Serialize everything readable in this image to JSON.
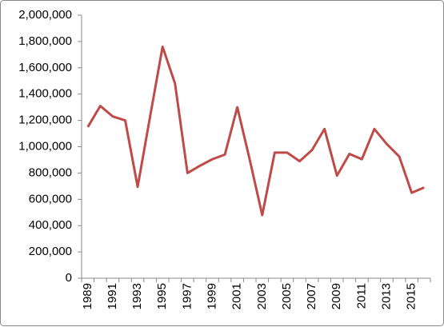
{
  "chart_data": {
    "type": "line",
    "categories": [
      "1989",
      null,
      "1991",
      null,
      "1993",
      null,
      "1995",
      null,
      "1997",
      null,
      "1999",
      null,
      "2001",
      null,
      "2003",
      null,
      "2005",
      null,
      "2007",
      null,
      "2009",
      null,
      "2011",
      null,
      "2013",
      null,
      "2015",
      null
    ],
    "series": [
      {
        "color": "#be4b48",
        "values": [
          1150000,
          1310000,
          1230000,
          1200000,
          695000,
          1230000,
          1760000,
          1480000,
          800000,
          855000,
          905000,
          940000,
          1300000,
          900000,
          480000,
          955000,
          955000,
          890000,
          975000,
          1135000,
          780000,
          945000,
          905000,
          1135000,
          1020000,
          925000,
          650000,
          690000
        ]
      }
    ],
    "ylim": [
      0,
      2000000
    ],
    "yticks": [
      0,
      {
        "value": 200000,
        "label": "200,000"
      },
      {
        "value": 400000,
        "label": "400,000"
      },
      {
        "value": 600000,
        "label": "600,000"
      },
      {
        "value": 800000,
        "label": "800,000"
      },
      {
        "value": 1000000,
        "label": "1,000,000"
      },
      {
        "value": 1200000,
        "label": "1,200,000"
      },
      {
        "value": 1400000,
        "label": "1,400,000"
      },
      {
        "value": 1600000,
        "label": "1,600,000"
      },
      {
        "value": 1800000,
        "label": "1,800,000"
      },
      {
        "value": 2000000,
        "label": "2,000,000"
      }
    ],
    "grid": false
  }
}
